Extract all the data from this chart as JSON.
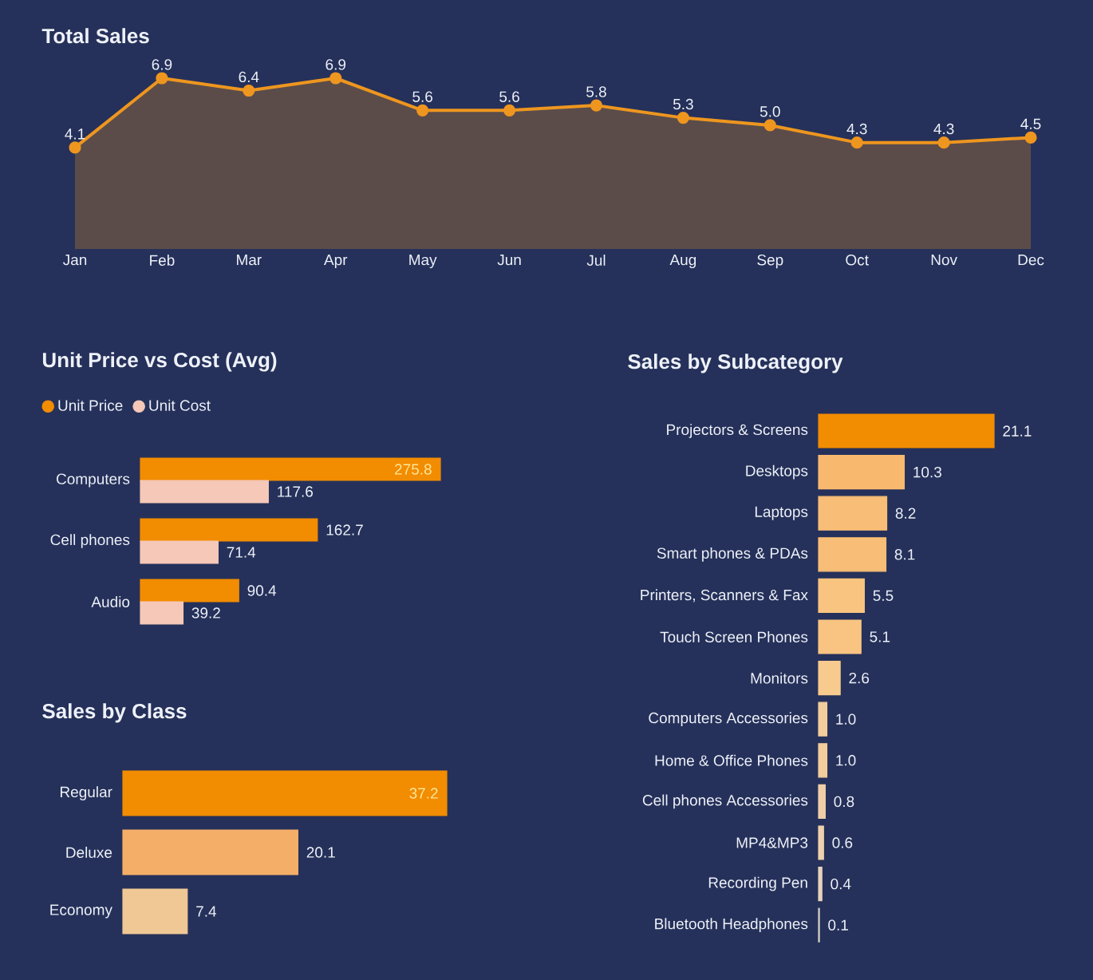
{
  "chart_data": [
    {
      "type": "area",
      "title": "Total Sales",
      "categories": [
        "Jan",
        "Feb",
        "Mar",
        "Apr",
        "May",
        "Jun",
        "Jul",
        "Aug",
        "Sep",
        "Oct",
        "Nov",
        "Dec"
      ],
      "values": [
        4.1,
        6.9,
        6.4,
        6.9,
        5.6,
        5.6,
        5.8,
        5.3,
        5.0,
        4.3,
        4.3,
        4.5
      ],
      "value_labels": [
        "4.1",
        "6.9",
        "6.4",
        "6.9",
        "5.6",
        "5.6",
        "5.8",
        "5.3",
        "5.0",
        "4.3",
        "4.3",
        "4.5"
      ],
      "color": "#ee961f",
      "marker": "circle",
      "tick_labels": "x"
    },
    {
      "type": "bar",
      "orientation": "horizontal",
      "title": "Unit Price vs Cost (Avg)",
      "categories": [
        "Computers",
        "Cell phones",
        "Audio"
      ],
      "series": [
        {
          "name": "Unit Price",
          "color": "#f28c00",
          "values": [
            275.8,
            162.7,
            90.4
          ]
        },
        {
          "name": "Unit Cost",
          "color": "#f5c8b8",
          "values": [
            117.6,
            71.4,
            39.2
          ]
        }
      ],
      "legend": "top left",
      "data_labels": true,
      "tick_labels": "y"
    },
    {
      "type": "bar",
      "orientation": "horizontal",
      "title": "Sales by Class",
      "categories": [
        "Regular",
        "Deluxe",
        "Economy"
      ],
      "values": [
        37.2,
        20.1,
        7.4
      ],
      "colors": [
        "#f28c00",
        "#f5ae68",
        "#f0c896"
      ],
      "data_labels": true,
      "tick_labels": "y"
    },
    {
      "type": "bar",
      "orientation": "horizontal",
      "title": "Sales by Subcategory",
      "categories": [
        "Projectors & Screens",
        "Desktops",
        "Laptops",
        "Smart phones & PDAs",
        "Printers, Scanners & Fax",
        "Touch Screen Phones",
        "Monitors",
        "Computers Accessories",
        "Home & Office Phones",
        "Cell phones Accessories",
        "MP4&MP3",
        "Recording Pen",
        "Bluetooth Headphones"
      ],
      "values": [
        21.1,
        10.3,
        8.2,
        8.1,
        5.5,
        5.1,
        2.6,
        1.0,
        1.0,
        0.8,
        0.6,
        0.4,
        0.1
      ],
      "value_labels": [
        "21.1",
        "10.3",
        "8.2",
        "8.1",
        "5.5",
        "5.1",
        "2.6",
        "1.0",
        "1.0",
        "0.8",
        "0.6",
        "0.4",
        "0.1"
      ],
      "colors": [
        "#f28c00",
        "#f8b96f",
        "#f8bd76",
        "#f8bd76",
        "#f9c47f",
        "#f9c482",
        "#f7ca8e",
        "#f3cc9c",
        "#f3cc9c",
        "#f0cfa8",
        "#eed1ad",
        "#e6d3bd",
        "#d9d2c9"
      ],
      "tick_labels": "y"
    }
  ]
}
